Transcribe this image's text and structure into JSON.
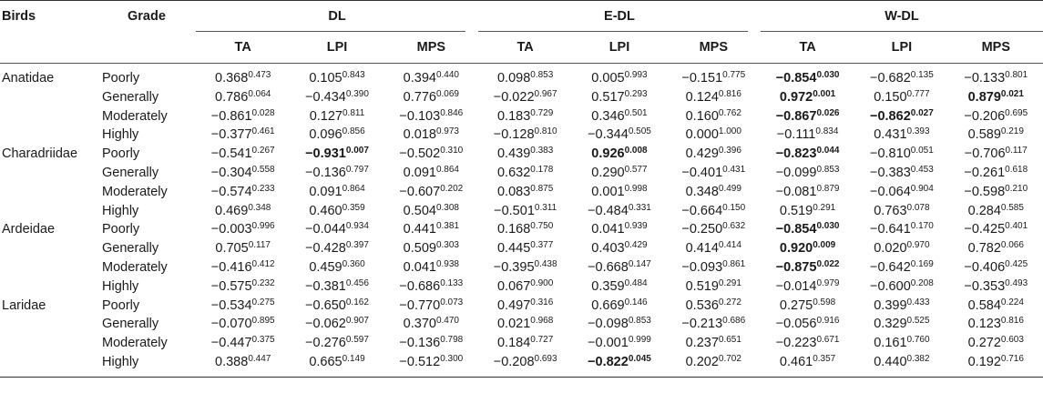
{
  "header": {
    "birds": "Birds",
    "grade": "Grade",
    "groups": [
      "DL",
      "E-DL",
      "W-DL"
    ],
    "subs": [
      "TA",
      "LPI",
      "MPS"
    ]
  },
  "rows": [
    {
      "bird": "Anatidae",
      "grade": "Poorly",
      "cells": [
        {
          "v": "0.368",
          "p": "0.473",
          "b": false
        },
        {
          "v": "0.105",
          "p": "0.843",
          "b": false
        },
        {
          "v": "0.394",
          "p": "0.440",
          "b": false
        },
        {
          "v": "0.098",
          "p": "0.853",
          "b": false
        },
        {
          "v": "0.005",
          "p": "0.993",
          "b": false
        },
        {
          "v": "−0.151",
          "p": "0.775",
          "b": false
        },
        {
          "v": "−0.854",
          "p": "0.030",
          "b": true
        },
        {
          "v": "−0.682",
          "p": "0.135",
          "b": false
        },
        {
          "v": "−0.133",
          "p": "0.801",
          "b": false
        }
      ]
    },
    {
      "bird": "",
      "grade": "Generally",
      "cells": [
        {
          "v": "0.786",
          "p": "0.064",
          "b": false
        },
        {
          "v": "−0.434",
          "p": "0.390",
          "b": false
        },
        {
          "v": "0.776",
          "p": "0.069",
          "b": false
        },
        {
          "v": "−0.022",
          "p": "0.967",
          "b": false
        },
        {
          "v": "0.517",
          "p": "0.293",
          "b": false
        },
        {
          "v": "0.124",
          "p": "0.816",
          "b": false
        },
        {
          "v": "0.972",
          "p": "0.001",
          "b": true
        },
        {
          "v": "0.150",
          "p": "0.777",
          "b": false
        },
        {
          "v": "0.879",
          "p": "0.021",
          "b": true
        }
      ]
    },
    {
      "bird": "",
      "grade": "Moderately",
      "cells": [
        {
          "v": "−0.861",
          "p": "0.028",
          "b": false
        },
        {
          "v": "0.127",
          "p": "0.811",
          "b": false
        },
        {
          "v": "−0.103",
          "p": "0.846",
          "b": false
        },
        {
          "v": "0.183",
          "p": "0.729",
          "b": false
        },
        {
          "v": "0.346",
          "p": "0.501",
          "b": false
        },
        {
          "v": "0.160",
          "p": "0.762",
          "b": false
        },
        {
          "v": "−0.867",
          "p": "0.026",
          "b": true
        },
        {
          "v": "−0.862",
          "p": "0.027",
          "b": true
        },
        {
          "v": "−0.206",
          "p": "0.695",
          "b": false
        }
      ]
    },
    {
      "bird": "",
      "grade": "Highly",
      "cells": [
        {
          "v": "−0.377",
          "p": "0.461",
          "b": false
        },
        {
          "v": "0.096",
          "p": "0.856",
          "b": false
        },
        {
          "v": "0.018",
          "p": "0.973",
          "b": false
        },
        {
          "v": "−0.128",
          "p": "0.810",
          "b": false
        },
        {
          "v": "−0.344",
          "p": "0.505",
          "b": false
        },
        {
          "v": "0.000",
          "p": "1.000",
          "b": false
        },
        {
          "v": "−0.111",
          "p": "0.834",
          "b": false
        },
        {
          "v": "0.431",
          "p": "0.393",
          "b": false
        },
        {
          "v": "0.589",
          "p": "0.219",
          "b": false
        }
      ]
    },
    {
      "bird": "Charadriidae",
      "grade": "Poorly",
      "cells": [
        {
          "v": "−0.541",
          "p": "0.267",
          "b": false
        },
        {
          "v": "−0.931",
          "p": "0.007",
          "b": true
        },
        {
          "v": "−0.502",
          "p": "0.310",
          "b": false
        },
        {
          "v": "0.439",
          "p": "0.383",
          "b": false
        },
        {
          "v": "0.926",
          "p": "0.008",
          "b": true
        },
        {
          "v": "0.429",
          "p": "0.396",
          "b": false
        },
        {
          "v": "−0.823",
          "p": "0.044",
          "b": true
        },
        {
          "v": "−0.810",
          "p": "0.051",
          "b": false
        },
        {
          "v": "−0.706",
          "p": "0.117",
          "b": false
        }
      ]
    },
    {
      "bird": "",
      "grade": "Generally",
      "cells": [
        {
          "v": "−0.304",
          "p": "0.558",
          "b": false
        },
        {
          "v": "−0.136",
          "p": "0.797",
          "b": false
        },
        {
          "v": "0.091",
          "p": "0.864",
          "b": false
        },
        {
          "v": "0.632",
          "p": "0.178",
          "b": false
        },
        {
          "v": "0.290",
          "p": "0.577",
          "b": false
        },
        {
          "v": "−0.401",
          "p": "0.431",
          "b": false
        },
        {
          "v": "−0.099",
          "p": "0.853",
          "b": false
        },
        {
          "v": "−0.383",
          "p": "0.453",
          "b": false
        },
        {
          "v": "−0.261",
          "p": "0.618",
          "b": false
        }
      ]
    },
    {
      "bird": "",
      "grade": "Moderately",
      "cells": [
        {
          "v": "−0.574",
          "p": "0.233",
          "b": false
        },
        {
          "v": "0.091",
          "p": "0.864",
          "b": false
        },
        {
          "v": "−0.607",
          "p": "0.202",
          "b": false
        },
        {
          "v": "0.083",
          "p": "0.875",
          "b": false
        },
        {
          "v": "0.001",
          "p": "0.998",
          "b": false
        },
        {
          "v": "0.348",
          "p": "0.499",
          "b": false
        },
        {
          "v": "−0.081",
          "p": "0.879",
          "b": false
        },
        {
          "v": "−0.064",
          "p": "0.904",
          "b": false
        },
        {
          "v": "−0.598",
          "p": "0.210",
          "b": false
        }
      ]
    },
    {
      "bird": "",
      "grade": "Highly",
      "cells": [
        {
          "v": "0.469",
          "p": "0.348",
          "b": false
        },
        {
          "v": "0.460",
          "p": "0.359",
          "b": false
        },
        {
          "v": "0.504",
          "p": "0.308",
          "b": false
        },
        {
          "v": "−0.501",
          "p": "0.311",
          "b": false
        },
        {
          "v": "−0.484",
          "p": "0.331",
          "b": false
        },
        {
          "v": "−0.664",
          "p": "0.150",
          "b": false
        },
        {
          "v": "0.519",
          "p": "0.291",
          "b": false
        },
        {
          "v": "0.763",
          "p": "0.078",
          "b": false
        },
        {
          "v": "0.284",
          "p": "0.585",
          "b": false
        }
      ]
    },
    {
      "bird": "Ardeidae",
      "grade": "Poorly",
      "cells": [
        {
          "v": "−0.003",
          "p": "0.996",
          "b": false
        },
        {
          "v": "−0.044",
          "p": "0.934",
          "b": false
        },
        {
          "v": "0.441",
          "p": "0.381",
          "b": false
        },
        {
          "v": "0.168",
          "p": "0.750",
          "b": false
        },
        {
          "v": "0.041",
          "p": "0.939",
          "b": false
        },
        {
          "v": "−0.250",
          "p": "0.632",
          "b": false
        },
        {
          "v": "−0.854",
          "p": "0.030",
          "b": true
        },
        {
          "v": "−0.641",
          "p": "0.170",
          "b": false
        },
        {
          "v": "−0.425",
          "p": "0.401",
          "b": false
        }
      ]
    },
    {
      "bird": "",
      "grade": "Generally",
      "cells": [
        {
          "v": "0.705",
          "p": "0.117",
          "b": false
        },
        {
          "v": "−0.428",
          "p": "0.397",
          "b": false
        },
        {
          "v": "0.509",
          "p": "0.303",
          "b": false
        },
        {
          "v": "0.445",
          "p": "0.377",
          "b": false
        },
        {
          "v": "0.403",
          "p": "0.429",
          "b": false
        },
        {
          "v": "0.414",
          "p": "0.414",
          "b": false
        },
        {
          "v": "0.920",
          "p": "0.009",
          "b": true
        },
        {
          "v": "0.020",
          "p": "0.970",
          "b": false
        },
        {
          "v": "0.782",
          "p": "0.066",
          "b": false
        }
      ]
    },
    {
      "bird": "",
      "grade": "Moderately",
      "cells": [
        {
          "v": "−0.416",
          "p": "0.412",
          "b": false
        },
        {
          "v": "0.459",
          "p": "0.360",
          "b": false
        },
        {
          "v": "0.041",
          "p": "0.938",
          "b": false
        },
        {
          "v": "−0.395",
          "p": "0.438",
          "b": false
        },
        {
          "v": "−0.668",
          "p": "0.147",
          "b": false
        },
        {
          "v": "−0.093",
          "p": "0.861",
          "b": false
        },
        {
          "v": "−0.875",
          "p": "0.022",
          "b": true
        },
        {
          "v": "−0.642",
          "p": "0.169",
          "b": false
        },
        {
          "v": "−0.406",
          "p": "0.425",
          "b": false
        }
      ]
    },
    {
      "bird": "",
      "grade": "Highly",
      "cells": [
        {
          "v": "−0.575",
          "p": "0.232",
          "b": false
        },
        {
          "v": "−0.381",
          "p": "0.456",
          "b": false
        },
        {
          "v": "−0.686",
          "p": "0.133",
          "b": false
        },
        {
          "v": "0.067",
          "p": "0.900",
          "b": false
        },
        {
          "v": "0.359",
          "p": "0.484",
          "b": false
        },
        {
          "v": "0.519",
          "p": "0.291",
          "b": false
        },
        {
          "v": "−0.014",
          "p": "0.979",
          "b": false
        },
        {
          "v": "−0.600",
          "p": "0.208",
          "b": false
        },
        {
          "v": "−0.353",
          "p": "0.493",
          "b": false
        }
      ]
    },
    {
      "bird": "Laridae",
      "grade": "Poorly",
      "cells": [
        {
          "v": "−0.534",
          "p": "0.275",
          "b": false
        },
        {
          "v": "−0.650",
          "p": "0.162",
          "b": false
        },
        {
          "v": "−0.770",
          "p": "0.073",
          "b": false
        },
        {
          "v": "0.497",
          "p": "0.316",
          "b": false
        },
        {
          "v": "0.669",
          "p": "0.146",
          "b": false
        },
        {
          "v": "0.536",
          "p": "0.272",
          "b": false
        },
        {
          "v": "0.275",
          "p": "0.598",
          "b": false
        },
        {
          "v": "0.399",
          "p": "0.433",
          "b": false
        },
        {
          "v": "0.584",
          "p": "0.224",
          "b": false
        }
      ]
    },
    {
      "bird": "",
      "grade": "Generally",
      "cells": [
        {
          "v": "−0.070",
          "p": "0.895",
          "b": false
        },
        {
          "v": "−0.062",
          "p": "0.907",
          "b": false
        },
        {
          "v": "0.370",
          "p": "0.470",
          "b": false
        },
        {
          "v": "0.021",
          "p": "0.968",
          "b": false
        },
        {
          "v": "−0.098",
          "p": "0.853",
          "b": false
        },
        {
          "v": "−0.213",
          "p": "0.686",
          "b": false
        },
        {
          "v": "−0.056",
          "p": "0.916",
          "b": false
        },
        {
          "v": "0.329",
          "p": "0.525",
          "b": false
        },
        {
          "v": "0.123",
          "p": "0.816",
          "b": false
        }
      ]
    },
    {
      "bird": "",
      "grade": "Moderately",
      "cells": [
        {
          "v": "−0.447",
          "p": "0.375",
          "b": false
        },
        {
          "v": "−0.276",
          "p": "0.597",
          "b": false
        },
        {
          "v": "−0.136",
          "p": "0.798",
          "b": false
        },
        {
          "v": "0.184",
          "p": "0.727",
          "b": false
        },
        {
          "v": "−0.001",
          "p": "0.999",
          "b": false
        },
        {
          "v": "0.237",
          "p": "0.651",
          "b": false
        },
        {
          "v": "−0.223",
          "p": "0.671",
          "b": false
        },
        {
          "v": "0.161",
          "p": "0.760",
          "b": false
        },
        {
          "v": "0.272",
          "p": "0.603",
          "b": false
        }
      ]
    },
    {
      "bird": "",
      "grade": "Highly",
      "cells": [
        {
          "v": "0.388",
          "p": "0.447",
          "b": false
        },
        {
          "v": "0.665",
          "p": "0.149",
          "b": false
        },
        {
          "v": "−0.512",
          "p": "0.300",
          "b": false
        },
        {
          "v": "−0.208",
          "p": "0.693",
          "b": false
        },
        {
          "v": "−0.822",
          "p": "0.045",
          "b": true
        },
        {
          "v": "0.202",
          "p": "0.702",
          "b": false
        },
        {
          "v": "0.461",
          "p": "0.357",
          "b": false
        },
        {
          "v": "0.440",
          "p": "0.382",
          "b": false
        },
        {
          "v": "0.192",
          "p": "0.716",
          "b": false
        }
      ]
    }
  ]
}
